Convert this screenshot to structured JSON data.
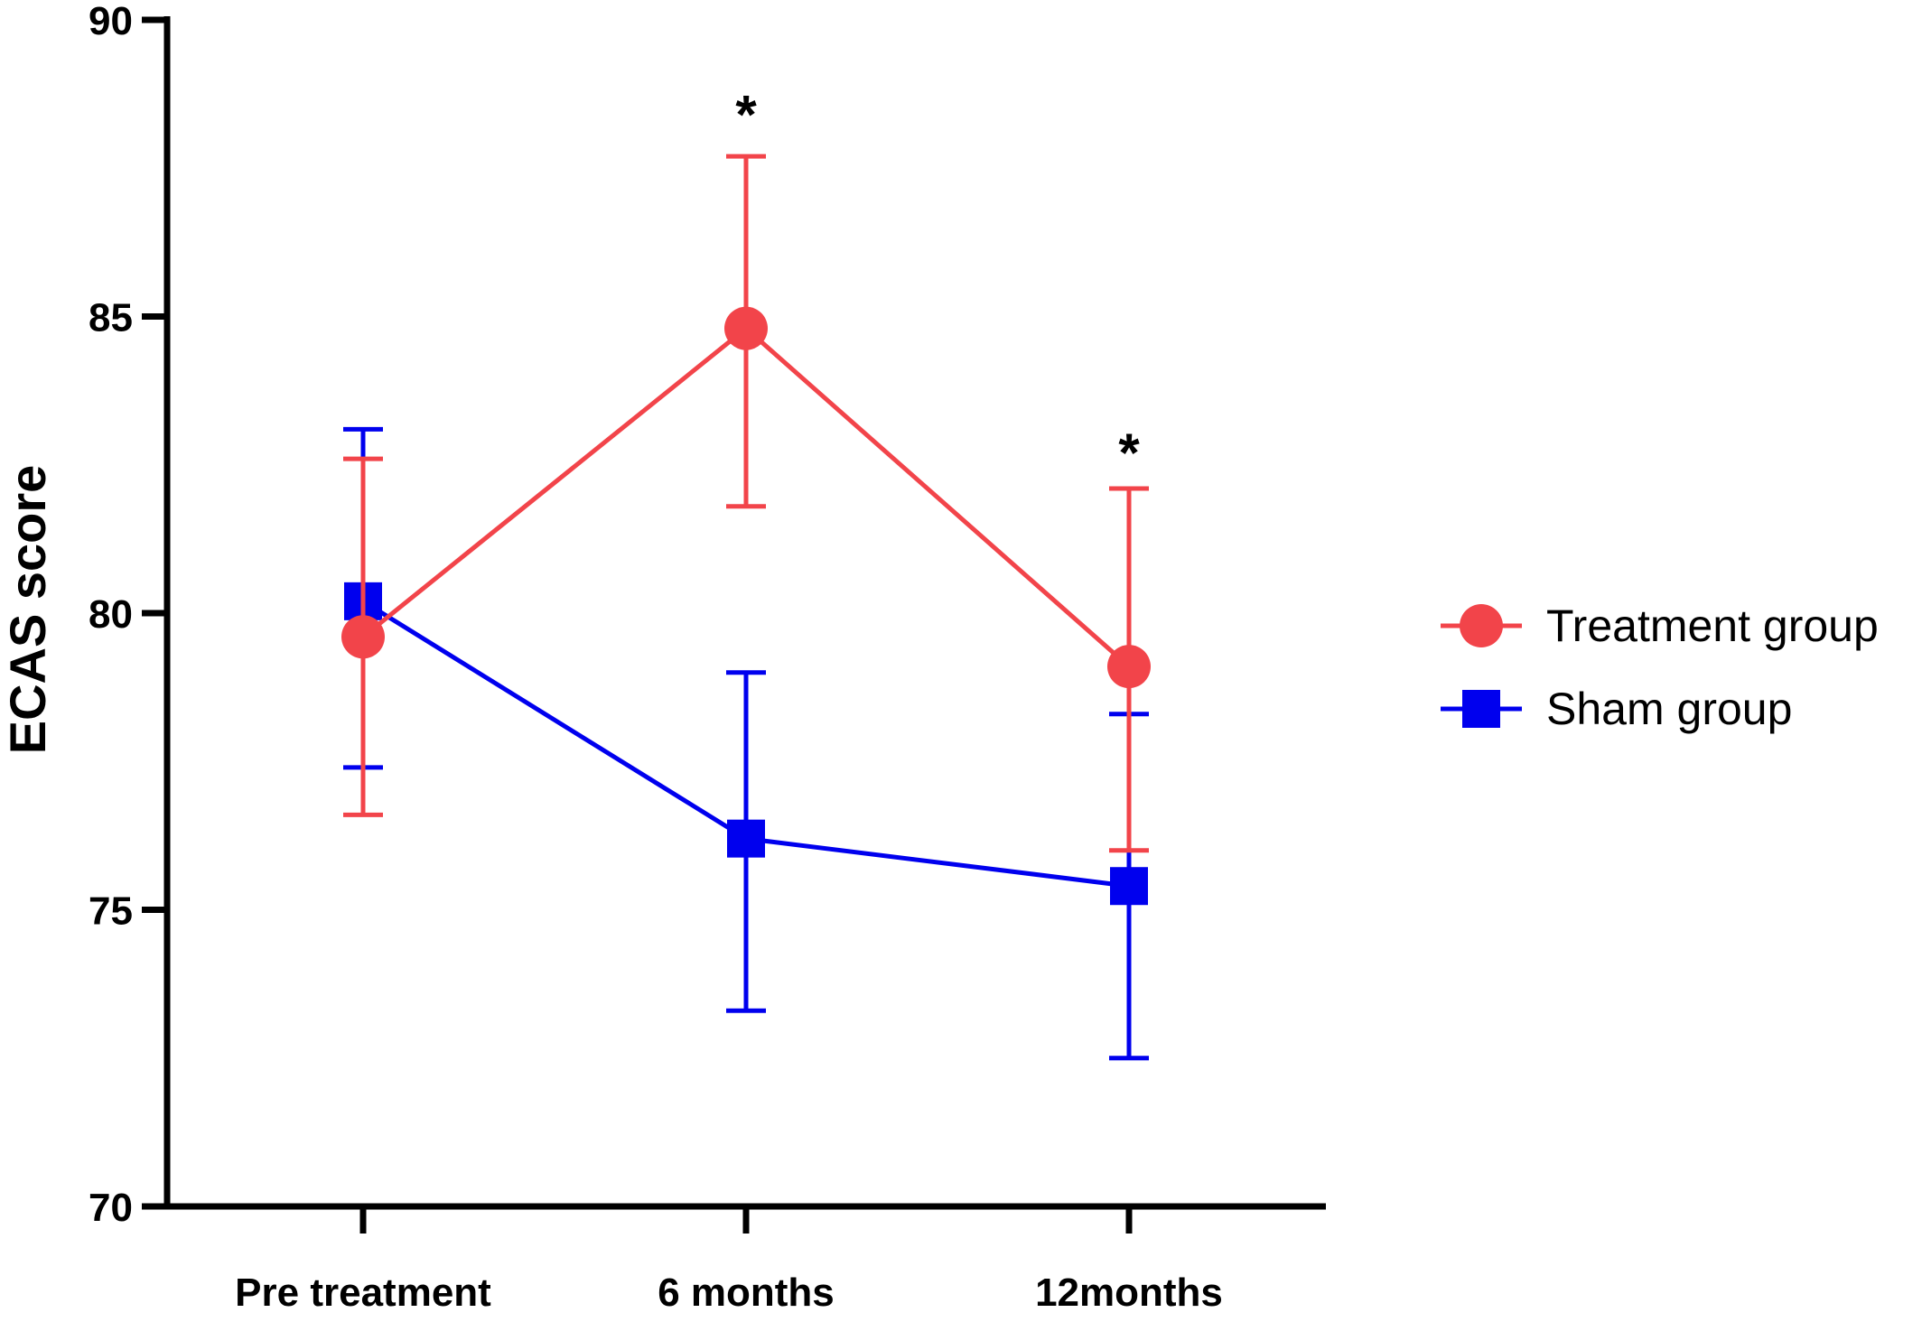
{
  "chart_data": {
    "type": "line",
    "title": "",
    "xlabel": "",
    "ylabel": "ECAS score",
    "ylim": [
      70,
      90
    ],
    "yticks": [
      70,
      75,
      80,
      85,
      90
    ],
    "categories": [
      "Pre treatment",
      "6 months",
      "12months"
    ],
    "grid": false,
    "legend_position": "right",
    "series": [
      {
        "name": "Treatment group",
        "marker": "circle",
        "color": "#f2444a",
        "values": [
          79.6,
          84.8,
          79.1
        ],
        "error_lower": [
          76.6,
          81.8,
          76.0
        ],
        "error_upper": [
          82.6,
          87.7,
          82.1
        ]
      },
      {
        "name": "Sham group",
        "marker": "square",
        "color": "#0000ee",
        "values": [
          80.2,
          76.2,
          75.4
        ],
        "error_lower": [
          77.4,
          73.3,
          72.5
        ],
        "error_upper": [
          83.1,
          79.0,
          78.3
        ]
      }
    ],
    "annotations": [
      {
        "category": "6 months",
        "text": "*",
        "value": 88.7
      },
      {
        "category": "12months",
        "text": "*",
        "value": 83.0
      }
    ]
  }
}
